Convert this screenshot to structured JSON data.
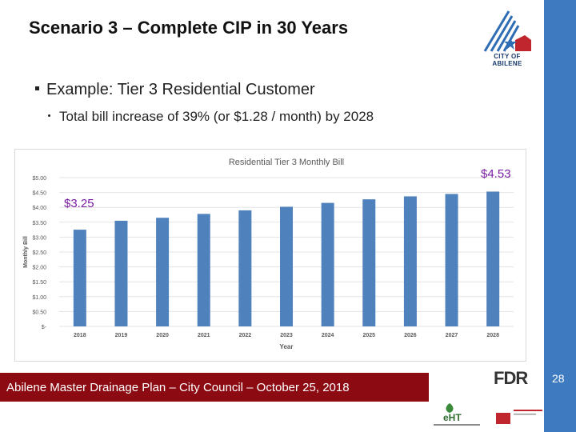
{
  "slide": {
    "title": "Scenario 3 – Complete CIP in 30 Years",
    "bullet1": "Example: Tier 3 Residential Customer",
    "bullet2": "Total bill increase of 39% (or $1.28 / month) by 2028",
    "callout_first": "$3.25",
    "callout_last": "$4.53",
    "footer": "Abilene Master Drainage Plan – City Council – October 25, 2018",
    "page_number": "28",
    "logo_text": "CITY OF ABILENE",
    "hdr_text": "FDR",
    "eht_text": "eHT"
  },
  "colors": {
    "bar": "#4f81bd",
    "callout": "#7a1fa2",
    "footer_bg": "#8c0a12",
    "band": "#3d7abf"
  },
  "chart_data": {
    "type": "bar",
    "title": "Residential Tier 3 Monthly Bill",
    "xlabel": "Year",
    "ylabel": "Monthly Bill",
    "categories": [
      "2018",
      "2019",
      "2020",
      "2021",
      "2022",
      "2023",
      "2024",
      "2025",
      "2026",
      "2027",
      "2028"
    ],
    "values": [
      3.25,
      3.55,
      3.65,
      3.78,
      3.9,
      4.02,
      4.15,
      4.27,
      4.37,
      4.45,
      4.53
    ],
    "ylim": [
      0,
      5
    ],
    "y_ticks": [
      "$-",
      "$0.50",
      "$1.00",
      "$1.50",
      "$2.00",
      "$2.50",
      "$3.00",
      "$3.50",
      "$4.00",
      "$4.50",
      "$5.00"
    ],
    "grid": true
  }
}
